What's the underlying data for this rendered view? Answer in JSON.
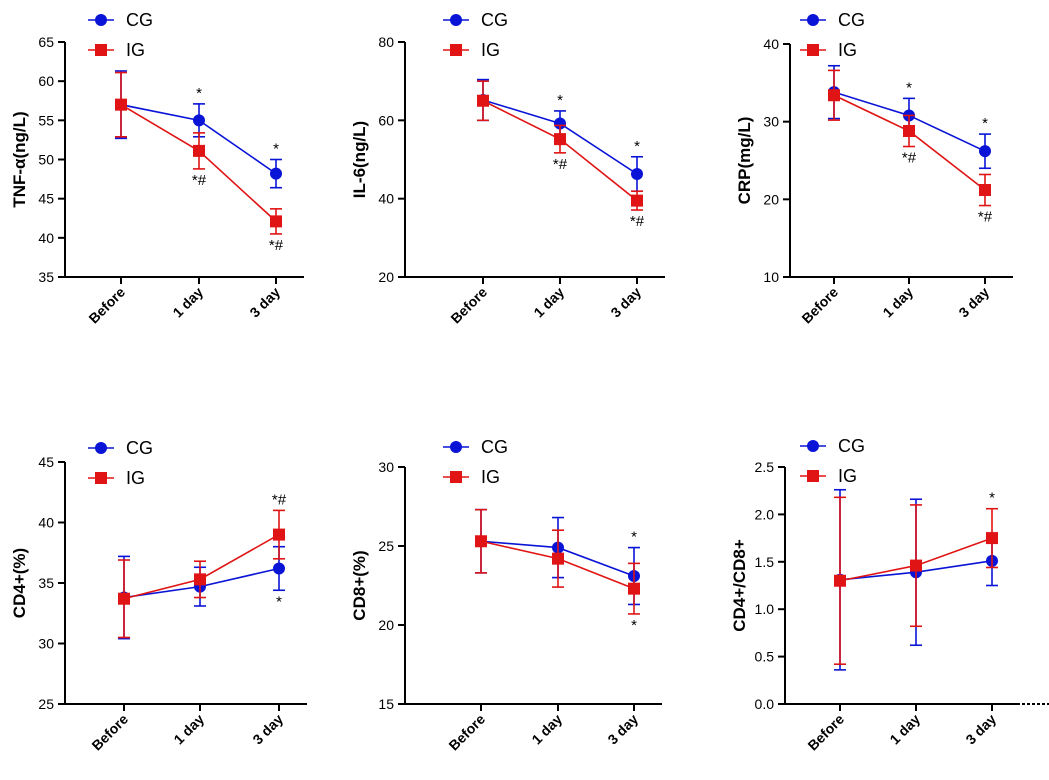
{
  "colors": {
    "CG": "#0a14d6",
    "IG": "#e01414",
    "axis": "#000000"
  },
  "legend": {
    "CG": "CG",
    "IG": "IG"
  },
  "chart_data": [
    {
      "type": "line",
      "categories": [
        "Before",
        "1 day",
        "3 day"
      ],
      "ylabel": "TNF-α(ng/L)",
      "ylim": [
        35,
        65
      ],
      "yticks": [
        35,
        40,
        45,
        50,
        55,
        60,
        65
      ],
      "series": [
        {
          "name": "CG",
          "values": [
            57.0,
            55.0,
            48.2
          ],
          "errors": [
            4.3,
            2.1,
            1.8
          ]
        },
        {
          "name": "IG",
          "values": [
            57.0,
            51.1,
            42.1
          ],
          "errors": [
            4.1,
            2.3,
            1.6
          ]
        }
      ],
      "annotations": [
        {
          "category": "1 day",
          "series": "CG",
          "position": "above",
          "text": "*"
        },
        {
          "category": "1 day",
          "series": "IG",
          "position": "below",
          "text": "*#"
        },
        {
          "category": "3 day",
          "series": "CG",
          "position": "above",
          "text": "*"
        },
        {
          "category": "3 day",
          "series": "IG",
          "position": "below",
          "text": "*#"
        }
      ]
    },
    {
      "type": "line",
      "categories": [
        "Before",
        "1 day",
        "3 day"
      ],
      "ylabel": "IL-6(ng/L)",
      "ylim": [
        20,
        80
      ],
      "yticks": [
        20,
        40,
        60,
        80
      ],
      "series": [
        {
          "name": "CG",
          "values": [
            65.2,
            59.2,
            46.3
          ],
          "errors": [
            5.2,
            3.2,
            4.4
          ]
        },
        {
          "name": "IG",
          "values": [
            65.0,
            55.2,
            39.5
          ],
          "errors": [
            5.0,
            3.5,
            2.4
          ]
        }
      ],
      "annotations": [
        {
          "category": "1 day",
          "series": "CG",
          "position": "above",
          "text": "*"
        },
        {
          "category": "1 day",
          "series": "IG",
          "position": "below",
          "text": "*#"
        },
        {
          "category": "3 day",
          "series": "CG",
          "position": "above",
          "text": "*"
        },
        {
          "category": "3 day",
          "series": "IG",
          "position": "below",
          "text": "*#"
        }
      ]
    },
    {
      "type": "line",
      "categories": [
        "Before",
        "1 day",
        "3 day"
      ],
      "ylabel": "CRP(mg/L)",
      "ylim": [
        10,
        40
      ],
      "yticks": [
        10,
        20,
        30,
        40
      ],
      "series": [
        {
          "name": "CG",
          "values": [
            33.8,
            30.8,
            26.2
          ],
          "errors": [
            3.4,
            2.2,
            2.2
          ]
        },
        {
          "name": "IG",
          "values": [
            33.4,
            28.8,
            21.2
          ],
          "errors": [
            3.2,
            2.0,
            2.0
          ]
        }
      ],
      "annotations": [
        {
          "category": "1 day",
          "series": "CG",
          "position": "above",
          "text": "*"
        },
        {
          "category": "1 day",
          "series": "IG",
          "position": "below",
          "text": "*#"
        },
        {
          "category": "3 day",
          "series": "CG",
          "position": "above",
          "text": "*"
        },
        {
          "category": "3 day",
          "series": "IG",
          "position": "below",
          "text": "*#"
        }
      ]
    },
    {
      "type": "line",
      "categories": [
        "Before",
        "1 day",
        "3 day"
      ],
      "ylabel": "CD4+(%)",
      "ylim": [
        25,
        45
      ],
      "yticks": [
        25,
        30,
        35,
        40,
        45
      ],
      "series": [
        {
          "name": "CG",
          "values": [
            33.8,
            34.7,
            36.2
          ],
          "errors": [
            3.4,
            1.6,
            1.8
          ]
        },
        {
          "name": "IG",
          "values": [
            33.7,
            35.3,
            39.0
          ],
          "errors": [
            3.2,
            1.5,
            2.0
          ]
        }
      ],
      "annotations": [
        {
          "category": "3 day",
          "series": "IG",
          "position": "above",
          "text": "*#"
        },
        {
          "category": "3 day",
          "series": "CG",
          "position": "below",
          "text": "*"
        }
      ]
    },
    {
      "type": "line",
      "categories": [
        "Before",
        "1 day",
        "3 day"
      ],
      "ylabel": "CD8+(%)",
      "ylim": [
        15,
        30
      ],
      "yticks": [
        15,
        20,
        25,
        30
      ],
      "series": [
        {
          "name": "CG",
          "values": [
            25.3,
            24.9,
            23.1
          ],
          "errors": [
            2.0,
            1.9,
            1.8
          ]
        },
        {
          "name": "IG",
          "values": [
            25.3,
            24.2,
            22.3
          ],
          "errors": [
            2.0,
            1.8,
            1.6
          ]
        }
      ],
      "annotations": [
        {
          "category": "3 day",
          "series": "CG",
          "position": "above",
          "text": "*"
        },
        {
          "category": "3 day",
          "series": "IG",
          "position": "below",
          "text": "*"
        }
      ]
    },
    {
      "type": "line",
      "categories": [
        "Before",
        "1 day",
        "3 day"
      ],
      "ylabel": "CD4+/CD8+",
      "ylim": [
        0.0,
        2.5
      ],
      "yticks": [
        0.0,
        0.5,
        1.0,
        1.5,
        2.0,
        2.5
      ],
      "tick_decimals": 1,
      "series": [
        {
          "name": "CG",
          "values": [
            1.31,
            1.39,
            1.51
          ],
          "errors": [
            0.95,
            0.77,
            0.26
          ]
        },
        {
          "name": "IG",
          "values": [
            1.3,
            1.46,
            1.75
          ],
          "errors": [
            0.88,
            0.64,
            0.31
          ]
        }
      ],
      "annotations": [
        {
          "category": "3 day",
          "series": "IG",
          "position": "above",
          "text": "*"
        }
      ]
    }
  ]
}
